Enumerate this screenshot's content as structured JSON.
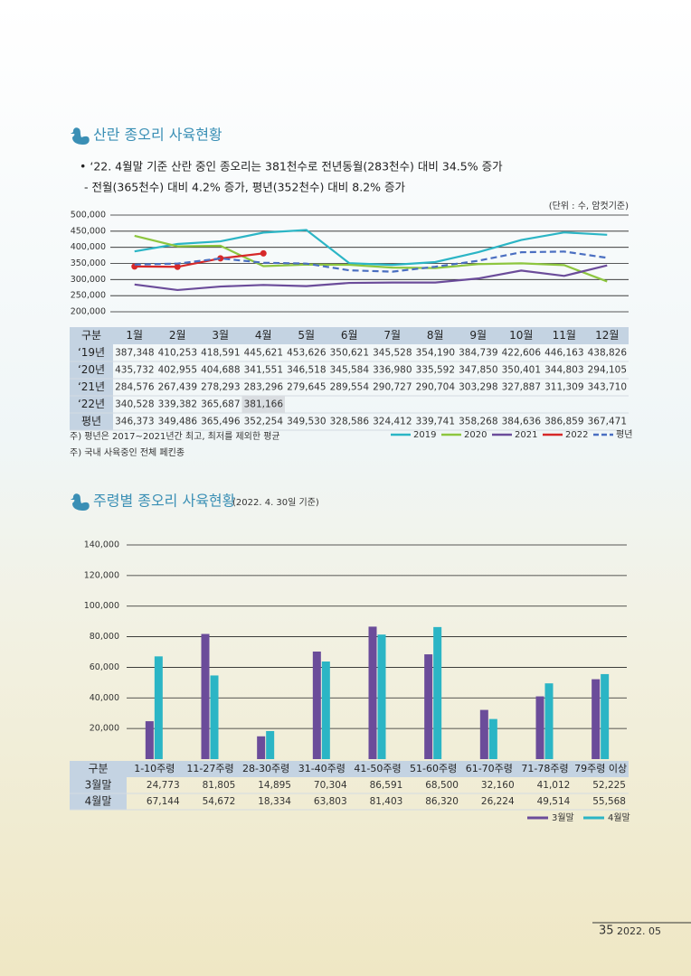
{
  "sections": [
    {
      "title": "산란 종오리 사육현황",
      "bullets": [
        "• ‘22. 4월말 기준 산란 중인 종오리는 381천수로  전년동월(283천수) 대비 34.5% 증가",
        "- 전월(365천수) 대비 4.2% 증가, 평년(352천수) 대비 8.2% 증가"
      ],
      "notes": [
        "주) 평년은 2017~2021년간 최고, 최저를 제외한 평균",
        "주) 국내 사육중인 전체 페킨종"
      ]
    },
    {
      "title": "주령별 종오리 사육현황",
      "subtitle": "(2022. 4. 30일 기준)"
    }
  ],
  "chart_data": [
    {
      "type": "line",
      "unit": "(단위 : 수, 암컷기준)",
      "table_header": "구분",
      "categories": [
        "1월",
        "2월",
        "3월",
        "4월",
        "5월",
        "6월",
        "7월",
        "8월",
        "9월",
        "10월",
        "11월",
        "12월"
      ],
      "row_labels": [
        "‘19년",
        "‘20년",
        "‘21년",
        "‘22년",
        "평년"
      ],
      "ylim": [
        200000,
        500000
      ],
      "grid": true,
      "yticks": [
        {
          "value": 200000,
          "label": "200,000"
        },
        {
          "value": 250000,
          "label": "250,000"
        },
        {
          "value": 300000,
          "label": "300,000"
        },
        {
          "value": 350000,
          "label": "350,000"
        },
        {
          "value": 400000,
          "label": "400,000"
        },
        {
          "value": 450000,
          "label": "450,000"
        },
        {
          "value": 500000,
          "label": "500,000"
        }
      ],
      "series": [
        {
          "name": "2019",
          "color": "#2bb5c5",
          "dash": false,
          "markers": false,
          "values": [
            387348,
            410253,
            418591,
            445621,
            453626,
            350621,
            345528,
            354190,
            384739,
            422606,
            446163,
            438826
          ],
          "value_labels": [
            "387,348",
            "410,253",
            "418,591",
            "445,621",
            "453,626",
            "350,621",
            "345,528",
            "354,190",
            "384,739",
            "422,606",
            "446,163",
            "438,826"
          ]
        },
        {
          "name": "2020",
          "color": "#8dc63f",
          "dash": false,
          "markers": false,
          "values": [
            435732,
            402955,
            404688,
            341551,
            346518,
            345584,
            336980,
            335592,
            347850,
            350401,
            344803,
            294105
          ],
          "value_labels": [
            "435,732",
            "402,955",
            "404,688",
            "341,551",
            "346,518",
            "345,584",
            "336,980",
            "335,592",
            "347,850",
            "350,401",
            "344,803",
            "294,105"
          ]
        },
        {
          "name": "2021",
          "color": "#6b4c9a",
          "dash": false,
          "markers": false,
          "values": [
            284576,
            267439,
            278293,
            283296,
            279645,
            289554,
            290727,
            290704,
            303298,
            327887,
            311309,
            343710
          ],
          "value_labels": [
            "284,576",
            "267,439",
            "278,293",
            "283,296",
            "279,645",
            "289,554",
            "290,727",
            "290,704",
            "303,298",
            "327,887",
            "311,309",
            "343,710"
          ]
        },
        {
          "name": "2022",
          "color": "#d62828",
          "dash": false,
          "markers": true,
          "values": [
            340528,
            339382,
            365687,
            381166,
            null,
            null,
            null,
            null,
            null,
            null,
            null,
            null
          ],
          "value_labels": [
            "340,528",
            "339,382",
            "365,687",
            "381,166",
            null,
            null,
            null,
            null,
            null,
            null,
            null,
            null
          ]
        },
        {
          "name": "평년",
          "color": "#4a6fc1",
          "dash": true,
          "markers": false,
          "values": [
            346373,
            349486,
            365496,
            352254,
            349530,
            328586,
            324412,
            339741,
            358268,
            384636,
            386859,
            367471
          ],
          "value_labels": [
            "346,373",
            "349,486",
            "365,496",
            "352,254",
            "349,530",
            "328,586",
            "324,412",
            "339,741",
            "358,268",
            "384,636",
            "386,859",
            "367,471"
          ]
        }
      ]
    },
    {
      "type": "bar",
      "table_header": "구분",
      "categories": [
        "1-10주령",
        "11-27주령",
        "28-30주령",
        "31-40주령",
        "41-50주령",
        "51-60주령",
        "61-70주령",
        "71-78주령",
        "79주령 이상"
      ],
      "ylim": [
        0,
        140000
      ],
      "grid": true,
      "yticks": [
        {
          "value": 20000,
          "label": "20,000"
        },
        {
          "value": 40000,
          "label": "40,000"
        },
        {
          "value": 60000,
          "label": "60,000"
        },
        {
          "value": 80000,
          "label": "80,000"
        },
        {
          "value": 100000,
          "label": "100,000"
        },
        {
          "value": 120000,
          "label": "120,000"
        },
        {
          "value": 140000,
          "label": "140,000"
        }
      ],
      "series": [
        {
          "name": "3월말",
          "color": "#6b4c9a",
          "values": [
            24773,
            81805,
            14895,
            70304,
            86591,
            68500,
            32160,
            41012,
            52225
          ],
          "value_labels": [
            "24,773",
            "81,805",
            "14,895",
            "70,304",
            "86,591",
            "68,500",
            "32,160",
            "41,012",
            "52,225"
          ]
        },
        {
          "name": "4월말",
          "color": "#2bb5c5",
          "values": [
            67144,
            54672,
            18334,
            63803,
            81403,
            86320,
            26224,
            49514,
            55568
          ],
          "value_labels": [
            "67,144",
            "54,672",
            "18,334",
            "63,803",
            "81,403",
            "86,320",
            "26,224",
            "49,514",
            "55,568"
          ]
        }
      ]
    }
  ],
  "footer": {
    "page": "35",
    "date": "2022. 05"
  }
}
